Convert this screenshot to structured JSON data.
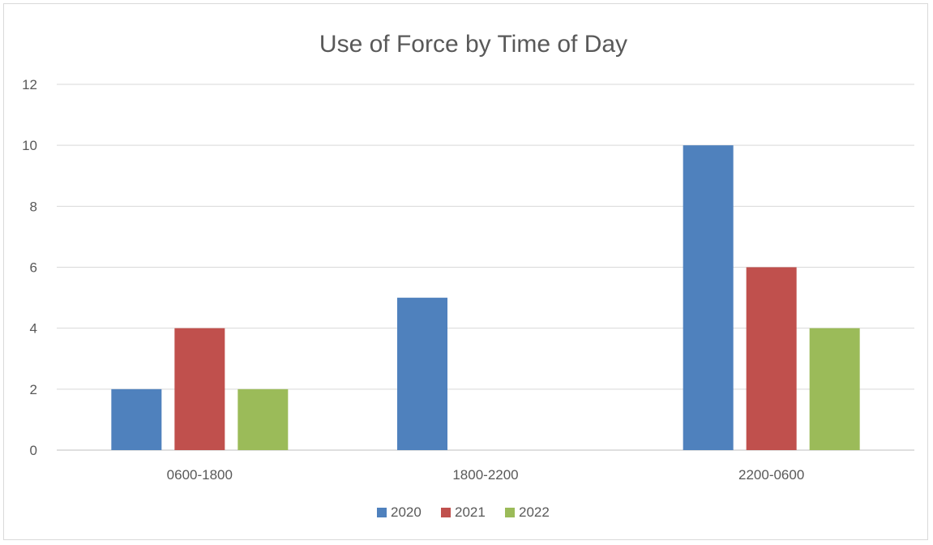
{
  "chart_data": {
    "type": "bar",
    "title": "Use of Force by Time of Day",
    "xlabel": "",
    "ylabel": "",
    "categories": [
      "0600-1800",
      "1800-2200",
      "2200-0600"
    ],
    "series": [
      {
        "name": "2020",
        "color": "#4f81bd",
        "values": [
          2,
          5,
          10
        ]
      },
      {
        "name": "2021",
        "color": "#c0504d",
        "values": [
          4,
          0,
          6
        ]
      },
      {
        "name": "2022",
        "color": "#9bbb59",
        "values": [
          2,
          0,
          4
        ]
      }
    ],
    "ylim": [
      0,
      12
    ],
    "yticks": [
      0,
      2,
      4,
      6,
      8,
      10,
      12
    ],
    "grid": true,
    "legend_position": "bottom"
  }
}
